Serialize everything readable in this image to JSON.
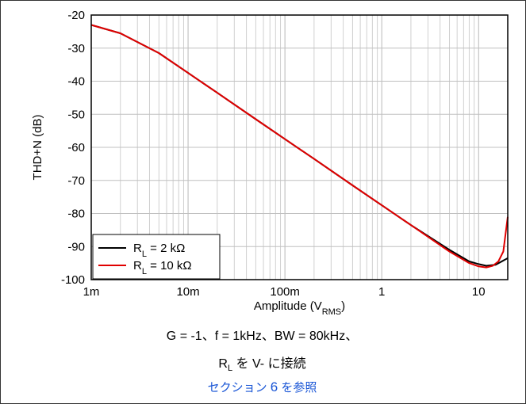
{
  "chart_data": {
    "type": "line",
    "xscale": "log",
    "xlim": [
      0.001,
      20
    ],
    "ylim": [
      -100,
      -20
    ],
    "xlabel_main": "Amplitude (V",
    "xlabel_sub": "RMS",
    "xlabel_end": ")",
    "ylabel": "THD+N (dB)",
    "x_ticks": [
      {
        "value": 0.001,
        "label": "1m"
      },
      {
        "value": 0.01,
        "label": "10m"
      },
      {
        "value": 0.1,
        "label": "100m"
      },
      {
        "value": 1,
        "label": "1"
      },
      {
        "value": 10,
        "label": "10"
      }
    ],
    "y_ticks": [
      -20,
      -30,
      -40,
      -50,
      -60,
      -70,
      -80,
      -90,
      -100
    ],
    "grid": true,
    "legend_position": "bottom-left",
    "series": [
      {
        "name_main": "R",
        "name_sub": "L",
        "name_rest": " = 2 kΩ",
        "color": "#000000",
        "x": [
          0.001,
          0.002,
          0.005,
          0.01,
          0.02,
          0.05,
          0.1,
          0.2,
          0.5,
          1,
          2,
          5,
          8,
          10,
          12,
          15,
          20
        ],
        "y": [
          -23,
          -25.5,
          -31.5,
          -37.5,
          -43.5,
          -51.5,
          -57.5,
          -63.5,
          -71.5,
          -77.5,
          -83.5,
          -91,
          -94.5,
          -95.3,
          -95.8,
          -95.5,
          -93.5
        ]
      },
      {
        "name_main": "R",
        "name_sub": "L",
        "name_rest": " = 10 kΩ",
        "color": "#e00000",
        "x": [
          0.001,
          0.002,
          0.005,
          0.01,
          0.02,
          0.05,
          0.1,
          0.2,
          0.5,
          1,
          2,
          5,
          8,
          10,
          12,
          14,
          16,
          18,
          20
        ],
        "y": [
          -23,
          -25.5,
          -31.5,
          -37.5,
          -43.5,
          -51.5,
          -57.5,
          -63.5,
          -71.5,
          -77.5,
          -83.5,
          -91.5,
          -95,
          -96,
          -96.3,
          -95.8,
          -94.5,
          -91.5,
          -81
        ]
      }
    ]
  },
  "caption": {
    "line1": "G = -1、f = 1kHz、BW = 80kHz、",
    "line2_main": "R",
    "line2_sub": "L",
    "line2_rest": " を V- に接続",
    "link_pre": "セクション ",
    "link_num": "6",
    "link_post": " を参照"
  }
}
